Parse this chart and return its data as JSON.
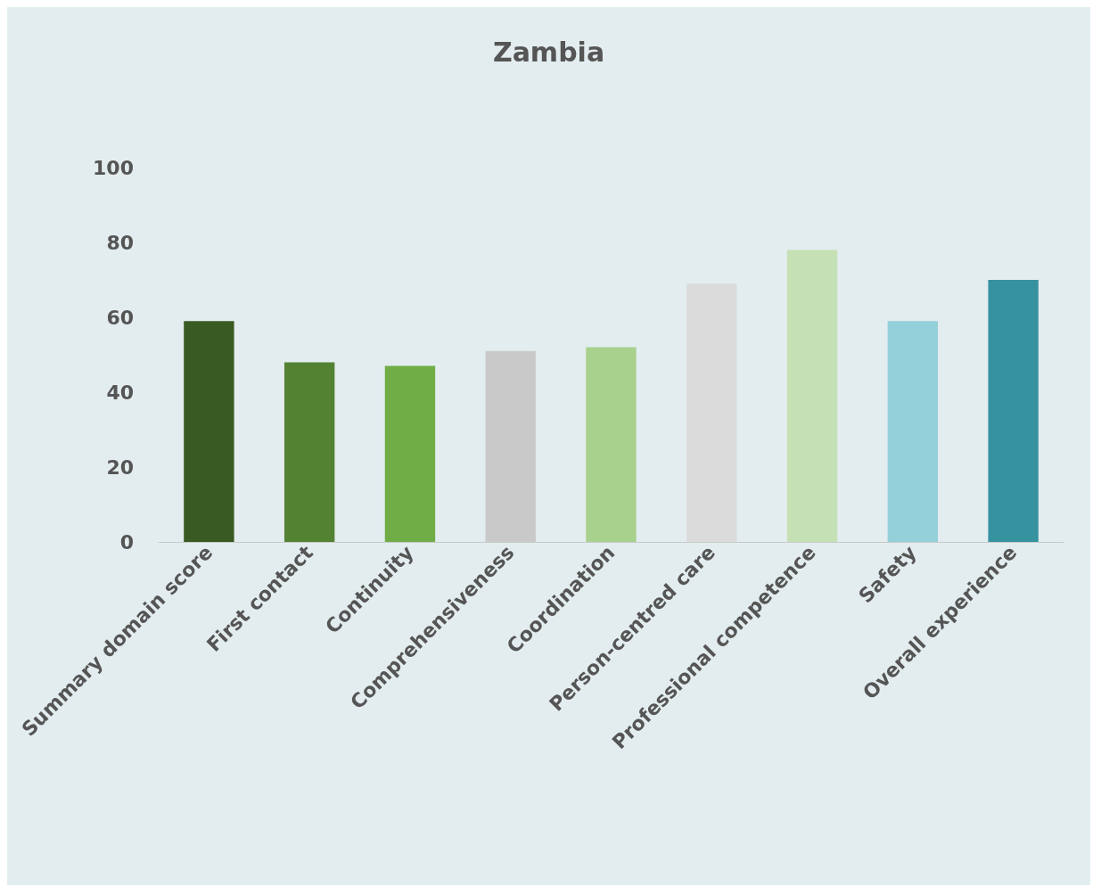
{
  "chart_data": {
    "type": "bar",
    "title": "Zambia",
    "categories": [
      "Summary domain score",
      "First contact",
      "Continuity",
      "Comprehensiveness",
      "Coordination",
      "Person-centred care",
      "Professional competence",
      "Safety",
      "Overall experience"
    ],
    "values": [
      59,
      48,
      47,
      51,
      52,
      69,
      78,
      59,
      70
    ],
    "colors": [
      "#3a5a23",
      "#538233",
      "#70ad47",
      "#c9c9c9",
      "#a9d18e",
      "#dbdbdb",
      "#c5e0b4",
      "#94d0da",
      "#3792a0"
    ],
    "ylim": [
      0,
      100
    ],
    "yticks": [
      0,
      20,
      40,
      60,
      80,
      100
    ],
    "grid": false
  }
}
